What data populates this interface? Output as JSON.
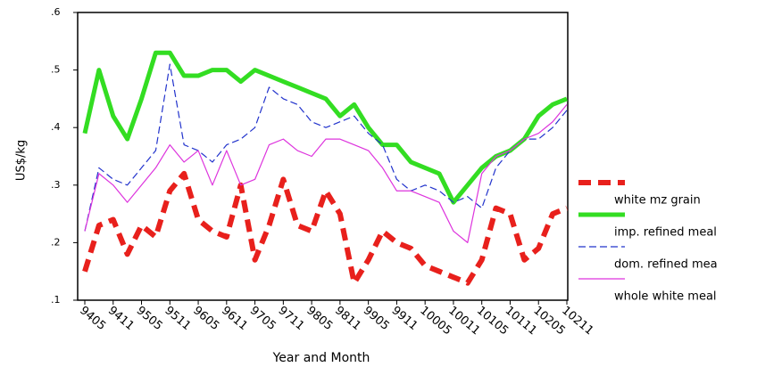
{
  "chart_data": {
    "type": "line",
    "x_label": "Year and Month",
    "y_label": "US$/kg",
    "categories": [
      "9405",
      null,
      "9411",
      null,
      "9505",
      null,
      "9511",
      null,
      "9605",
      null,
      "9611",
      null,
      "9705",
      null,
      "9711",
      null,
      "9805",
      null,
      "9811",
      null,
      "9905",
      null,
      "9911",
      null,
      "10005",
      null,
      "10011",
      null,
      "10105",
      null,
      "10111",
      null,
      "10205",
      null,
      "10211"
    ],
    "ylim": [
      0.1,
      0.6
    ],
    "yticks": [
      {
        "value": 0.1,
        "label": ".1"
      },
      {
        "value": 0.2,
        "label": ".2"
      },
      {
        "value": 0.3,
        "label": ".3"
      },
      {
        "value": 0.4,
        "label": ".4"
      },
      {
        "value": 0.5,
        "label": ".5"
      },
      {
        "value": 0.6,
        "label": ".6"
      }
    ],
    "series": [
      {
        "name": "white mz grain",
        "color": "#e8201c",
        "width": 6,
        "dash": "14 8",
        "values": [
          0.15,
          0.23,
          0.24,
          0.18,
          0.23,
          0.21,
          0.29,
          0.32,
          0.24,
          0.22,
          0.21,
          0.3,
          0.17,
          0.23,
          0.31,
          0.23,
          0.22,
          0.29,
          0.25,
          0.13,
          0.17,
          0.22,
          0.2,
          0.19,
          0.16,
          0.15,
          0.14,
          0.13,
          0.17,
          0.26,
          0.25,
          0.17,
          0.19,
          0.25,
          0.26
        ]
      },
      {
        "name": "imp. refined meal",
        "color": "#33dd22",
        "width": 5,
        "dash": "none",
        "values": [
          0.39,
          0.5,
          0.42,
          0.38,
          0.45,
          0.53,
          0.53,
          0.49,
          0.49,
          0.5,
          0.5,
          0.48,
          0.5,
          0.49,
          0.48,
          0.47,
          0.46,
          0.45,
          0.42,
          0.44,
          0.4,
          0.37,
          0.37,
          0.34,
          0.33,
          0.32,
          0.27,
          0.3,
          0.33,
          0.35,
          0.36,
          0.38,
          0.42,
          0.44,
          0.45
        ]
      },
      {
        "name": "dom. refined mea",
        "color": "#2233cc",
        "width": 1.2,
        "dash": "8 4",
        "values": [
          0.22,
          0.33,
          0.31,
          0.3,
          0.33,
          0.36,
          0.51,
          0.37,
          0.36,
          0.34,
          0.37,
          0.38,
          0.4,
          0.47,
          0.45,
          0.44,
          0.41,
          0.4,
          0.41,
          0.42,
          0.39,
          0.37,
          0.31,
          0.29,
          0.3,
          0.29,
          0.27,
          0.28,
          0.26,
          0.33,
          0.36,
          0.38,
          0.38,
          0.4,
          0.43
        ]
      },
      {
        "name": "whole white meal",
        "color": "#dd33dd",
        "width": 1.2,
        "dash": "none",
        "values": [
          0.22,
          0.32,
          0.3,
          0.27,
          0.3,
          0.33,
          0.37,
          0.34,
          0.36,
          0.3,
          0.36,
          0.3,
          0.31,
          0.37,
          0.38,
          0.36,
          0.35,
          0.38,
          0.38,
          0.37,
          0.36,
          0.33,
          0.29,
          0.29,
          0.28,
          0.27,
          0.22,
          0.2,
          0.32,
          0.35,
          0.36,
          0.38,
          0.39,
          0.41,
          0.44
        ]
      }
    ]
  }
}
